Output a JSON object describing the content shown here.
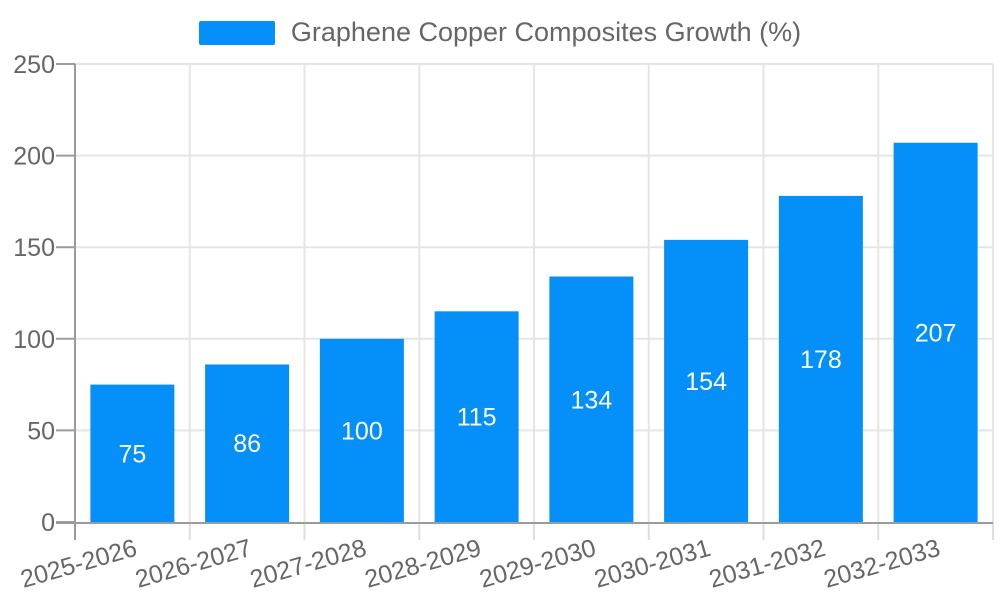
{
  "legend": {
    "label": "Graphene Copper Composites Growth (%)"
  },
  "chart_data": {
    "type": "bar",
    "title": "Graphene Copper Composites Growth (%)",
    "categories": [
      "2025-2026",
      "2026-2027",
      "2027-2028",
      "2028-2029",
      "2029-2030",
      "2030-2031",
      "2031-2032",
      "2032-2033"
    ],
    "series": [
      {
        "name": "Graphene Copper Composites Growth (%)",
        "values": [
          75,
          86,
          100,
          115,
          134,
          154,
          178,
          207
        ]
      }
    ],
    "xlabel": "",
    "ylabel": "",
    "ylim": [
      0,
      250
    ],
    "yticks": [
      0,
      50,
      100,
      150,
      200,
      250
    ],
    "grid": "both",
    "legend_position": "top-center",
    "value_label_position": "inside-center",
    "x_label_rotation_deg": -16,
    "colors": {
      "bar": "#058FF9",
      "grid": "#e5e5e5",
      "tick_x": "#dedede",
      "axis": "#9b9b9b",
      "text": "#666666",
      "value_label": "#ffffff",
      "background": "#ffffff"
    }
  }
}
